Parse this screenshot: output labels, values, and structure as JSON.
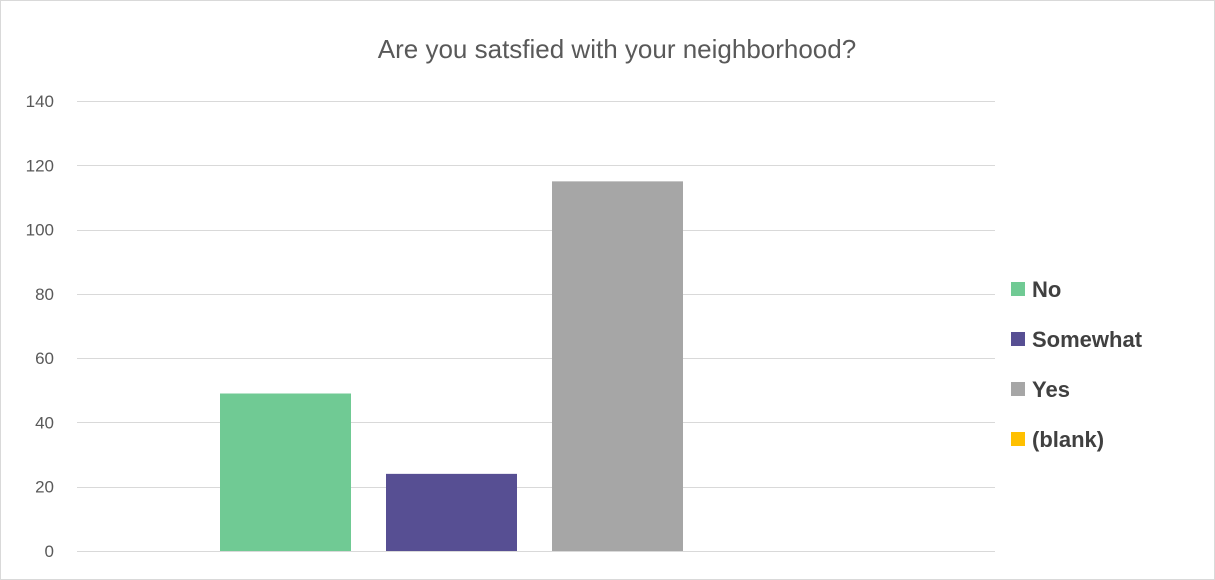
{
  "chart_data": {
    "type": "bar",
    "title": "Are you satsfied with your neighborhood?",
    "xlabel": "",
    "ylabel": "",
    "ylim": [
      0,
      140
    ],
    "yticks": [
      0,
      20,
      40,
      60,
      80,
      100,
      120,
      140
    ],
    "grid": true,
    "legend_position": "right",
    "series": [
      {
        "name": "No",
        "values": [
          49
        ],
        "color": "#70ca94"
      },
      {
        "name": "Somewhat",
        "values": [
          24
        ],
        "color": "#574f93"
      },
      {
        "name": "Yes",
        "values": [
          115
        ],
        "color": "#a6a6a6"
      },
      {
        "name": "(blank)",
        "values": [
          0
        ],
        "color": "#ffc000"
      }
    ]
  }
}
